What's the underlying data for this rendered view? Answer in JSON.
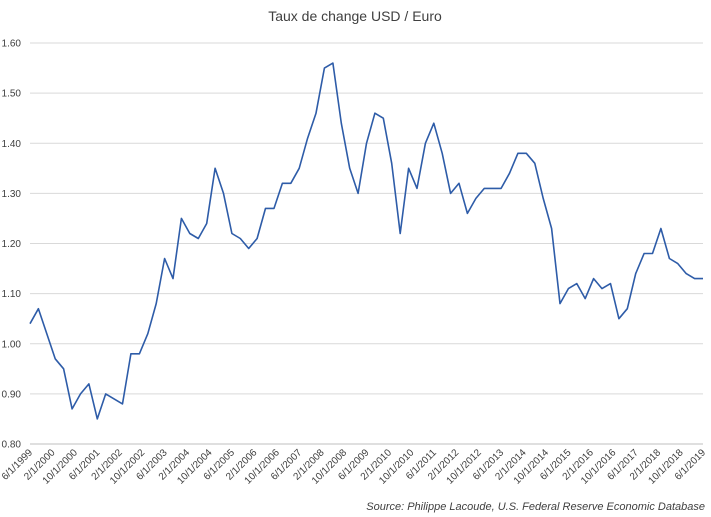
{
  "chart_data": {
    "type": "line",
    "title": "Taux de change USD / Euro",
    "xlabel": "",
    "ylabel": "",
    "source": "Source: Philippe Lacoude, U.S. Federal Reserve Economic Database",
    "ylim": [
      0.8,
      1.6
    ],
    "y_ticks": [
      "0.80",
      "0.90",
      "1.00",
      "1.10",
      "1.20",
      "1.30",
      "1.40",
      "1.50",
      "1.60"
    ],
    "x_ticks": [
      "6/1/1999",
      "2/1/2000",
      "10/1/2000",
      "6/1/2001",
      "2/1/2002",
      "10/1/2002",
      "6/1/2003",
      "2/1/2004",
      "10/1/2004",
      "6/1/2005",
      "2/1/2006",
      "10/1/2006",
      "6/1/2007",
      "2/1/2008",
      "10/1/2008",
      "6/1/2009",
      "2/1/2010",
      "10/1/2010",
      "6/1/2011",
      "2/1/2012",
      "10/1/2012",
      "6/1/2013",
      "2/1/2014",
      "10/1/2014",
      "6/1/2015",
      "2/1/2016",
      "10/1/2016",
      "6/1/2017",
      "2/1/2018",
      "10/1/2018",
      "6/1/2019"
    ],
    "grid": true,
    "legend": "none",
    "line_color": "#2e5ca8",
    "series": [
      {
        "x": [
          "1999-06",
          "1999-09",
          "1999-12",
          "2000-03",
          "2000-06",
          "2000-09",
          "2000-12",
          "2001-03",
          "2001-06",
          "2001-09",
          "2001-12",
          "2002-03",
          "2002-06",
          "2002-09",
          "2002-12",
          "2003-03",
          "2003-06",
          "2003-09",
          "2003-12",
          "2004-03",
          "2004-06",
          "2004-09",
          "2004-12",
          "2005-03",
          "2005-06",
          "2005-09",
          "2005-12",
          "2006-03",
          "2006-06",
          "2006-09",
          "2006-12",
          "2007-03",
          "2007-06",
          "2007-09",
          "2007-12",
          "2008-03",
          "2008-06",
          "2008-09",
          "2008-12",
          "2009-03",
          "2009-06",
          "2009-09",
          "2009-12",
          "2010-03",
          "2010-06",
          "2010-09",
          "2010-12",
          "2011-03",
          "2011-06",
          "2011-09",
          "2011-12",
          "2012-03",
          "2012-06",
          "2012-09",
          "2012-12",
          "2013-03",
          "2013-06",
          "2013-09",
          "2013-12",
          "2014-03",
          "2014-06",
          "2014-09",
          "2014-12",
          "2015-03",
          "2015-06",
          "2015-09",
          "2015-12",
          "2016-03",
          "2016-06",
          "2016-09",
          "2016-12",
          "2017-03",
          "2017-06",
          "2017-09",
          "2017-12",
          "2018-03",
          "2018-06",
          "2018-09",
          "2018-12",
          "2019-03",
          "2019-06"
        ],
        "y": [
          1.04,
          1.07,
          1.02,
          0.97,
          0.95,
          0.87,
          0.9,
          0.92,
          0.85,
          0.9,
          0.89,
          0.88,
          0.98,
          0.98,
          1.02,
          1.08,
          1.17,
          1.13,
          1.25,
          1.22,
          1.21,
          1.24,
          1.35,
          1.3,
          1.22,
          1.21,
          1.19,
          1.21,
          1.27,
          1.27,
          1.32,
          1.32,
          1.35,
          1.41,
          1.46,
          1.55,
          1.56,
          1.44,
          1.35,
          1.3,
          1.4,
          1.46,
          1.45,
          1.36,
          1.22,
          1.35,
          1.31,
          1.4,
          1.44,
          1.38,
          1.3,
          1.32,
          1.26,
          1.29,
          1.31,
          1.31,
          1.31,
          1.34,
          1.38,
          1.38,
          1.36,
          1.29,
          1.23,
          1.08,
          1.11,
          1.12,
          1.09,
          1.13,
          1.11,
          1.12,
          1.05,
          1.07,
          1.14,
          1.18,
          1.18,
          1.23,
          1.17,
          1.16,
          1.14,
          1.13,
          1.13
        ]
      }
    ]
  }
}
